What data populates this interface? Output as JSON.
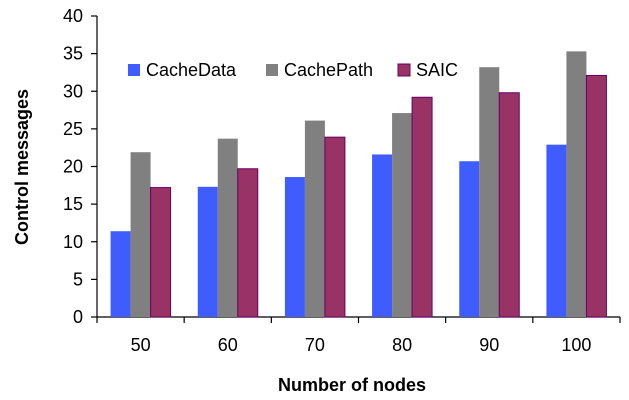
{
  "chart_data": {
    "type": "bar",
    "categories": [
      "50",
      "60",
      "70",
      "80",
      "90",
      "100"
    ],
    "series": [
      {
        "name": "CacheData",
        "values": [
          11.4,
          17.3,
          18.6,
          21.6,
          20.7,
          22.9
        ],
        "color": "#3f5cff"
      },
      {
        "name": "CachePath",
        "values": [
          21.9,
          23.7,
          26.1,
          27.1,
          33.2,
          35.3
        ],
        "color": "#808080"
      },
      {
        "name": "SAIC",
        "values": [
          17.2,
          19.7,
          23.9,
          29.2,
          29.8,
          32.1
        ],
        "color": "#993366"
      }
    ],
    "xlabel": "Number of nodes",
    "ylabel": "Control messages",
    "ylim": [
      0,
      40
    ],
    "yticks": [
      "0",
      "5",
      "10",
      "15",
      "20",
      "25",
      "30",
      "35",
      "40"
    ],
    "legend": "top-left inside plot",
    "grid": false
  }
}
